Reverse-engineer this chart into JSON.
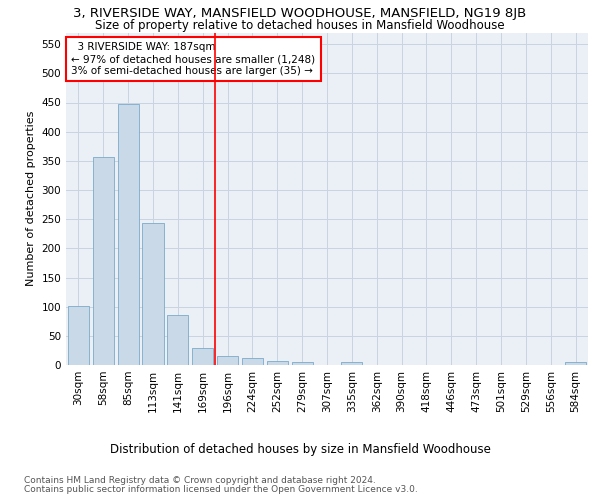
{
  "title": "3, RIVERSIDE WAY, MANSFIELD WOODHOUSE, MANSFIELD, NG19 8JB",
  "subtitle": "Size of property relative to detached houses in Mansfield Woodhouse",
  "xlabel": "Distribution of detached houses by size in Mansfield Woodhouse",
  "ylabel": "Number of detached properties",
  "footer_line1": "Contains HM Land Registry data © Crown copyright and database right 2024.",
  "footer_line2": "Contains public sector information licensed under the Open Government Licence v3.0.",
  "annotation_line1": "  3 RIVERSIDE WAY: 187sqm",
  "annotation_line2": "← 97% of detached houses are smaller (1,248)",
  "annotation_line3": "3% of semi-detached houses are larger (35) →",
  "bar_color": "#c9d9e8",
  "bar_edge_color": "#7aaac8",
  "vline_color": "red",
  "annotation_box_edge_color": "red",
  "grid_color": "#c8d4e0",
  "bg_color": "#eaf0f6",
  "categories": [
    "30sqm",
    "58sqm",
    "85sqm",
    "113sqm",
    "141sqm",
    "169sqm",
    "196sqm",
    "224sqm",
    "252sqm",
    "279sqm",
    "307sqm",
    "335sqm",
    "362sqm",
    "390sqm",
    "418sqm",
    "446sqm",
    "473sqm",
    "501sqm",
    "529sqm",
    "556sqm",
    "584sqm"
  ],
  "values": [
    102,
    357,
    447,
    243,
    86,
    30,
    15,
    12,
    7,
    5,
    0,
    5,
    0,
    0,
    0,
    0,
    0,
    0,
    0,
    0,
    5
  ],
  "ylim": [
    0,
    570
  ],
  "yticks": [
    0,
    50,
    100,
    150,
    200,
    250,
    300,
    350,
    400,
    450,
    500,
    550
  ],
  "vline_x_index": 5.5,
  "title_fontsize": 9.5,
  "subtitle_fontsize": 8.5,
  "xlabel_fontsize": 8.5,
  "ylabel_fontsize": 8,
  "tick_fontsize": 7.5,
  "annotation_fontsize": 7.5,
  "footer_fontsize": 6.5
}
